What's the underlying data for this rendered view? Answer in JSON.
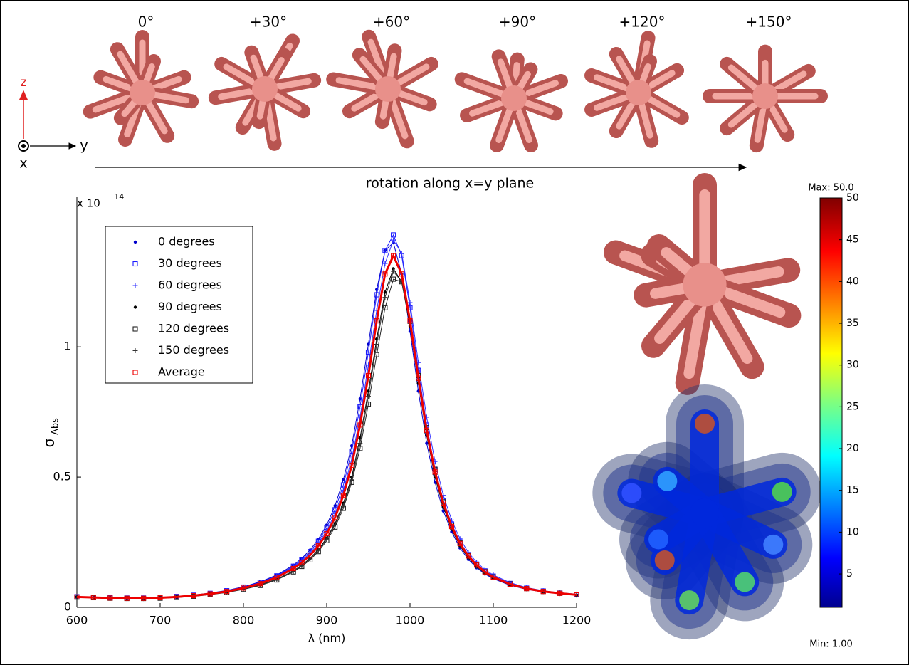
{
  "illustration": {
    "angles": [
      "0°",
      "+30°",
      "+60°",
      "+90°",
      "+120°",
      "+150°"
    ],
    "axis_z": "z",
    "axis_y": "y",
    "axis_x": "x",
    "caption": "rotation along x=y plane"
  },
  "chart_data": {
    "type": "line",
    "y_scale": "x 10",
    "y_scale_exponent": "−14",
    "ylabel": "σ",
    "ylabel_sub": "Abs",
    "xlabel": "λ (nm)",
    "xlim": [
      600,
      1200
    ],
    "xticks": [
      600,
      700,
      800,
      900,
      1000,
      1100,
      1200
    ],
    "ylim": [
      0,
      1.55
    ],
    "yticks": [
      0,
      0.5,
      1
    ],
    "legend": "upper left",
    "x": [
      600,
      620,
      640,
      660,
      680,
      700,
      720,
      740,
      760,
      780,
      800,
      820,
      840,
      860,
      870,
      880,
      890,
      900,
      910,
      920,
      930,
      940,
      950,
      960,
      970,
      980,
      990,
      1000,
      1010,
      1020,
      1030,
      1040,
      1050,
      1060,
      1070,
      1080,
      1090,
      1100,
      1120,
      1140,
      1160,
      1180,
      1200
    ],
    "series": [
      {
        "name": "0 degrees",
        "color": "#0000cc",
        "marker": "dot",
        "values": [
          0.041,
          0.039,
          0.037,
          0.036,
          0.036,
          0.038,
          0.042,
          0.047,
          0.055,
          0.065,
          0.079,
          0.098,
          0.124,
          0.162,
          0.188,
          0.22,
          0.262,
          0.316,
          0.39,
          0.49,
          0.62,
          0.8,
          1.01,
          1.22,
          1.37,
          1.4,
          1.28,
          1.06,
          0.83,
          0.63,
          0.48,
          0.37,
          0.29,
          0.228,
          0.184,
          0.152,
          0.128,
          0.11,
          0.085,
          0.069,
          0.059,
          0.052,
          0.047
        ]
      },
      {
        "name": "30 degrees",
        "color": "#1a1aff",
        "marker": "square",
        "values": [
          0.041,
          0.039,
          0.037,
          0.036,
          0.036,
          0.038,
          0.042,
          0.047,
          0.054,
          0.064,
          0.078,
          0.096,
          0.121,
          0.158,
          0.183,
          0.214,
          0.254,
          0.306,
          0.375,
          0.47,
          0.6,
          0.77,
          0.98,
          1.2,
          1.37,
          1.43,
          1.35,
          1.15,
          0.91,
          0.7,
          0.53,
          0.41,
          0.32,
          0.251,
          0.202,
          0.166,
          0.14,
          0.12,
          0.092,
          0.074,
          0.063,
          0.055,
          0.05
        ]
      },
      {
        "name": "60 degrees",
        "color": "#3333ff",
        "marker": "plus",
        "values": [
          0.041,
          0.039,
          0.037,
          0.036,
          0.036,
          0.038,
          0.041,
          0.046,
          0.053,
          0.063,
          0.077,
          0.095,
          0.119,
          0.155,
          0.179,
          0.208,
          0.246,
          0.295,
          0.36,
          0.45,
          0.57,
          0.73,
          0.93,
          1.14,
          1.32,
          1.41,
          1.36,
          1.17,
          0.94,
          0.73,
          0.56,
          0.43,
          0.335,
          0.263,
          0.211,
          0.173,
          0.145,
          0.124,
          0.095,
          0.076,
          0.064,
          0.056,
          0.051
        ]
      },
      {
        "name": "90 degrees",
        "color": "#000000",
        "marker": "dot",
        "values": [
          0.039,
          0.037,
          0.035,
          0.034,
          0.034,
          0.036,
          0.039,
          0.043,
          0.05,
          0.058,
          0.07,
          0.086,
          0.108,
          0.14,
          0.162,
          0.188,
          0.222,
          0.266,
          0.322,
          0.4,
          0.5,
          0.65,
          0.83,
          1.03,
          1.21,
          1.3,
          1.25,
          1.08,
          0.86,
          0.66,
          0.5,
          0.385,
          0.3,
          0.236,
          0.19,
          0.156,
          0.131,
          0.113,
          0.087,
          0.07,
          0.06,
          0.053,
          0.047
        ]
      },
      {
        "name": "120 degrees",
        "color": "#222222",
        "marker": "square",
        "values": [
          0.039,
          0.037,
          0.035,
          0.034,
          0.034,
          0.035,
          0.038,
          0.042,
          0.049,
          0.057,
          0.069,
          0.084,
          0.105,
          0.136,
          0.157,
          0.182,
          0.214,
          0.256,
          0.308,
          0.38,
          0.48,
          0.61,
          0.78,
          0.97,
          1.15,
          1.26,
          1.25,
          1.1,
          0.89,
          0.69,
          0.53,
          0.405,
          0.315,
          0.248,
          0.199,
          0.163,
          0.137,
          0.117,
          0.09,
          0.072,
          0.061,
          0.054,
          0.048
        ]
      },
      {
        "name": "150 degrees",
        "color": "#333333",
        "marker": "plus",
        "values": [
          0.039,
          0.037,
          0.035,
          0.034,
          0.034,
          0.036,
          0.039,
          0.043,
          0.05,
          0.058,
          0.07,
          0.085,
          0.107,
          0.139,
          0.16,
          0.186,
          0.219,
          0.262,
          0.317,
          0.39,
          0.49,
          0.63,
          0.81,
          1.01,
          1.19,
          1.29,
          1.25,
          1.09,
          0.87,
          0.67,
          0.51,
          0.39,
          0.305,
          0.24,
          0.193,
          0.158,
          0.133,
          0.114,
          0.088,
          0.071,
          0.06,
          0.053,
          0.047
        ]
      },
      {
        "name": "Average",
        "color": "#ee0000",
        "marker": "square",
        "values": [
          0.04,
          0.038,
          0.036,
          0.035,
          0.035,
          0.037,
          0.04,
          0.045,
          0.052,
          0.061,
          0.074,
          0.091,
          0.115,
          0.149,
          0.172,
          0.2,
          0.236,
          0.283,
          0.345,
          0.43,
          0.545,
          0.7,
          0.89,
          1.1,
          1.28,
          1.35,
          1.28,
          1.1,
          0.88,
          0.68,
          0.52,
          0.4,
          0.31,
          0.245,
          0.197,
          0.162,
          0.136,
          0.116,
          0.089,
          0.072,
          0.061,
          0.054,
          0.048
        ]
      }
    ],
    "colorbar": {
      "label_max": "Max: 50.0",
      "label_min": "Min: 1.00",
      "lim": [
        1,
        50
      ],
      "ticks": [
        5,
        10,
        15,
        20,
        25,
        30,
        35,
        40,
        45,
        50
      ],
      "colormap": "jet"
    }
  }
}
